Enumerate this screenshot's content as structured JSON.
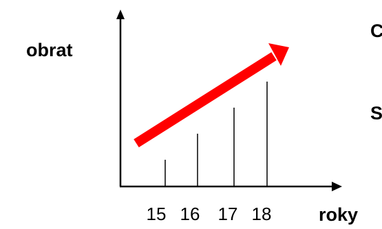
{
  "chart_data": {
    "type": "bar",
    "ylabel": "obrat",
    "xlabel": "roky",
    "categories": [
      "15",
      "16",
      "17",
      "18"
    ],
    "values": [
      1,
      2,
      3,
      4
    ],
    "trend_arrow": {
      "color": "#ff0000",
      "direction": "up-right"
    },
    "axis_color": "#000000"
  },
  "side_labels": {
    "top": "C",
    "middle": "S"
  }
}
